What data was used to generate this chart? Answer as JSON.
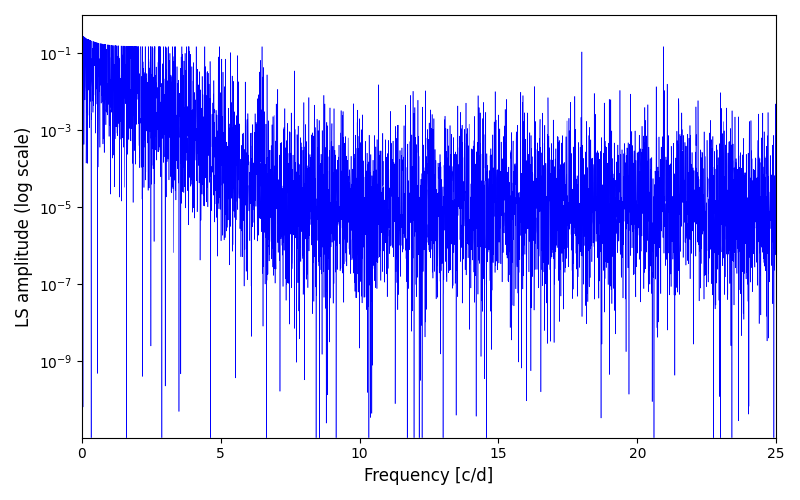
{
  "title": "",
  "xlabel": "Frequency [c/d]",
  "ylabel": "LS amplitude (log scale)",
  "xlim": [
    0,
    25
  ],
  "ylim": [
    1e-11,
    1.0
  ],
  "line_color": "blue",
  "figsize": [
    8.0,
    5.0
  ],
  "dpi": 100,
  "yscale": "log",
  "seed": 12345,
  "n_points": 5000,
  "freq_max": 25.0
}
